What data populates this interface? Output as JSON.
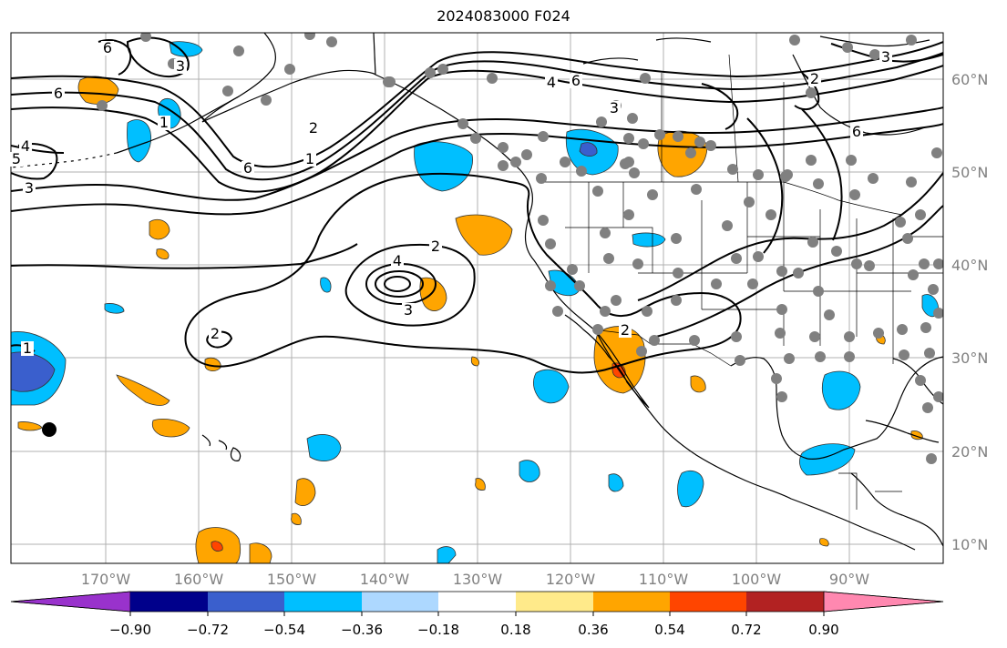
{
  "title": "2024083000 F024",
  "longitude_labels": [
    "170°W",
    "160°W",
    "150°W",
    "140°W",
    "130°W",
    "120°W",
    "110°W",
    "100°W",
    "90°W"
  ],
  "latitude_labels": [
    "60°N",
    "50°N",
    "40°N",
    "30°N",
    "20°N",
    "10°N"
  ],
  "contour_labels": [
    "6",
    "6",
    "3",
    "2",
    "1",
    "6",
    "4",
    "6",
    "3",
    "2",
    "2",
    "4",
    "3",
    "2",
    "2",
    "1",
    "6",
    "3",
    "5",
    "4",
    "3",
    "1"
  ],
  "colorbar": {
    "ticks": [
      "−0.90",
      "−0.72",
      "−0.54",
      "−0.36",
      "−0.18",
      "0.18",
      "0.36",
      "0.54",
      "0.72",
      "0.90"
    ],
    "colors": [
      "#9932cc",
      "#00008b",
      "#3a5fcd",
      "#00bfff",
      "#add8ff",
      "#ffffff",
      "#ffea8a",
      "#ffa500",
      "#ff4500",
      "#b22222",
      "#ff88b0"
    ]
  },
  "colors": {
    "contour": "#000000",
    "station": "#808080",
    "grid": "#b0b0b0",
    "axis_label": "#808080"
  }
}
